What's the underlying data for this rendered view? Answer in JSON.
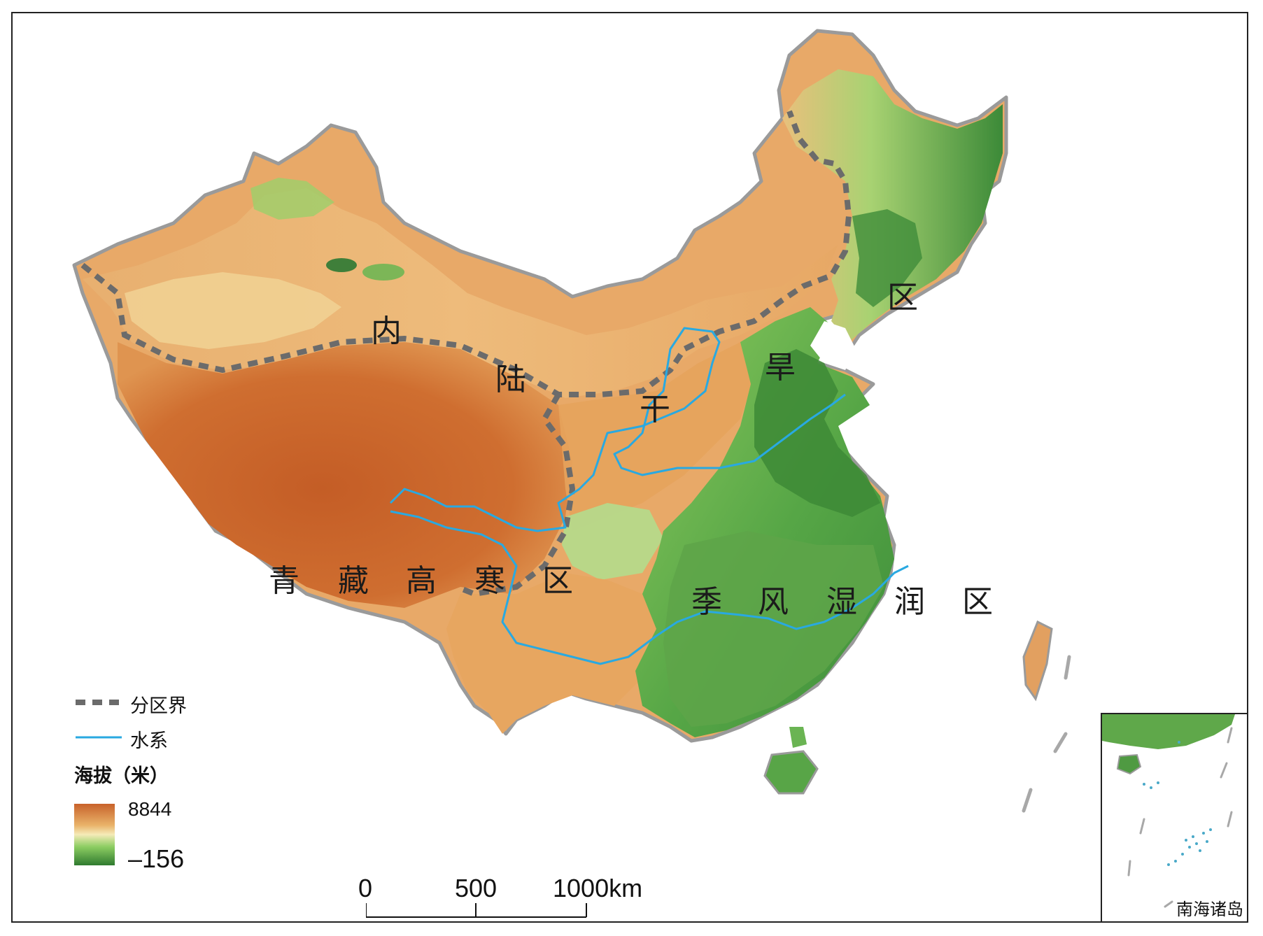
{
  "regions": [
    {
      "id": "inland-arid",
      "chars": [
        "内",
        "陆",
        "干",
        "旱",
        "区"
      ]
    },
    {
      "id": "qinghai-tibet",
      "chars": [
        "青",
        "藏",
        "高",
        "寒",
        "区"
      ]
    },
    {
      "id": "monsoon",
      "chars": [
        "季",
        "风",
        "湿",
        "润",
        "区"
      ]
    }
  ],
  "legend": {
    "boundary_label": "分区界",
    "river_label": "水系",
    "elevation_title": "海拔（米）",
    "elevation_max": "8844",
    "elevation_min": "–156",
    "colors": {
      "high": "#c8622a",
      "mid": "#e9b36a",
      "light": "#f3e3a8",
      "low": "#7fc25a",
      "lowest": "#3e8a3a",
      "boundary": "#6b6b6b",
      "river": "#29a9e1"
    }
  },
  "scale_bar": {
    "ticks": [
      "0",
      "500",
      "1000km"
    ]
  },
  "inset": {
    "label": "南海诸岛"
  }
}
